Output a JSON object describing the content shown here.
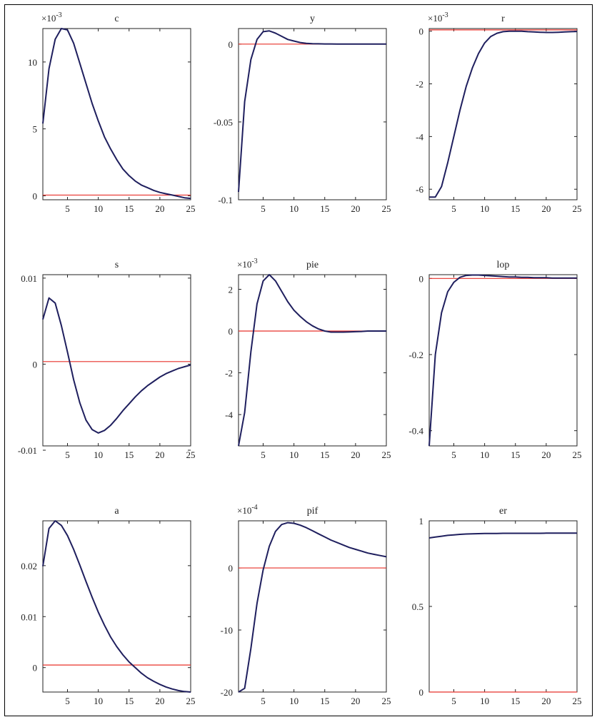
{
  "colors": {
    "response": "#1f1f5e",
    "zero": "#e8302a",
    "axis": "#222222"
  },
  "chart_data": [
    {
      "type": "line",
      "title": "c",
      "exponent": "-3",
      "x": [
        1,
        2,
        3,
        4,
        5,
        6,
        7,
        8,
        9,
        10,
        11,
        12,
        13,
        14,
        15,
        16,
        17,
        18,
        19,
        20,
        21,
        22,
        23,
        24,
        25
      ],
      "series": [
        {
          "values": [
            5.4,
            9.5,
            11.7,
            12.5,
            12.4,
            11.4,
            9.9,
            8.4,
            6.9,
            5.6,
            4.4,
            3.5,
            2.7,
            2.0,
            1.5,
            1.1,
            0.8,
            0.6,
            0.4,
            0.25,
            0.15,
            0.05,
            -0.05,
            -0.15,
            -0.2
          ]
        }
      ],
      "xlim": [
        1,
        25
      ],
      "ylim": [
        -0.3,
        12.5
      ],
      "xticks": [
        5,
        10,
        15,
        20,
        25
      ],
      "xtick_labels": [
        "5",
        "10",
        "15",
        "20",
        "25"
      ],
      "yticks": [
        0,
        5,
        10
      ],
      "ytick_labels": [
        "0",
        "5",
        "10"
      ],
      "zero_line": 0.05
    },
    {
      "type": "line",
      "title": "y",
      "exponent": "",
      "x": [
        1,
        2,
        3,
        4,
        5,
        6,
        7,
        8,
        9,
        10,
        11,
        12,
        13,
        14,
        15,
        16,
        17,
        18,
        19,
        20,
        21,
        22,
        23,
        24,
        25
      ],
      "series": [
        {
          "values": [
            -0.095,
            -0.037,
            -0.01,
            0.003,
            0.008,
            0.0085,
            0.007,
            0.005,
            0.003,
            0.002,
            0.001,
            0.0005,
            0.0003,
            0.0002,
            0.0001,
            0.0001,
            5e-05,
            3e-05,
            0.0,
            0.0,
            0.0,
            0.0,
            0.0,
            0.0,
            0.0
          ]
        }
      ],
      "xlim": [
        1,
        25
      ],
      "ylim": [
        -0.1,
        0.01
      ],
      "xticks": [
        5,
        10,
        15,
        20,
        25
      ],
      "xtick_labels": [
        "5",
        "10",
        "15",
        "20",
        "25"
      ],
      "yticks": [
        -0.1,
        -0.05,
        0
      ],
      "ytick_labels": [
        "-0.1",
        "-0.05",
        "0"
      ],
      "zero_line": 0
    },
    {
      "type": "line",
      "title": "r",
      "exponent": "-3",
      "x": [
        1,
        2,
        3,
        4,
        5,
        6,
        7,
        8,
        9,
        10,
        11,
        12,
        13,
        14,
        15,
        16,
        17,
        18,
        19,
        20,
        21,
        22,
        23,
        24,
        25
      ],
      "series": [
        {
          "values": [
            -6.3,
            -6.3,
            -5.9,
            -5.0,
            -4.0,
            -3.0,
            -2.1,
            -1.4,
            -0.85,
            -0.45,
            -0.2,
            -0.08,
            -0.02,
            0.0,
            0.0,
            0.0,
            -0.02,
            -0.03,
            -0.04,
            -0.05,
            -0.05,
            -0.04,
            -0.03,
            -0.02,
            -0.01
          ]
        }
      ],
      "xlim": [
        1,
        25
      ],
      "ylim": [
        -6.4,
        0.1
      ],
      "xticks": [
        5,
        10,
        15,
        20,
        25
      ],
      "xtick_labels": [
        "5",
        "10",
        "15",
        "20",
        "25"
      ],
      "yticks": [
        -6,
        -4,
        -2,
        0
      ],
      "ytick_labels": [
        "-6",
        "-4",
        "-2",
        "0"
      ],
      "zero_line": 0.05
    },
    {
      "type": "line",
      "title": "s",
      "exponent": "",
      "x": [
        1,
        2,
        3,
        4,
        5,
        6,
        7,
        8,
        9,
        10,
        11,
        12,
        13,
        14,
        15,
        16,
        17,
        18,
        19,
        20,
        21,
        22,
        23,
        24,
        25
      ],
      "series": [
        {
          "values": [
            0.0052,
            0.0077,
            0.0071,
            0.0045,
            0.0014,
            -0.0018,
            -0.0045,
            -0.0065,
            -0.0076,
            -0.008,
            -0.0077,
            -0.0071,
            -0.0063,
            -0.0054,
            -0.0046,
            -0.0038,
            -0.0031,
            -0.0025,
            -0.002,
            -0.0015,
            -0.0011,
            -0.0008,
            -0.0005,
            -0.0003,
            -0.0001
          ]
        }
      ],
      "xlim": [
        1,
        25
      ],
      "ylim": [
        -0.0095,
        0.0104
      ],
      "xticks": [
        5,
        10,
        15,
        20,
        25
      ],
      "xtick_labels": [
        "5",
        "10",
        "15",
        "20",
        "25"
      ],
      "yticks": [
        -0.01,
        0,
        0.01
      ],
      "ytick_labels": [
        "-0.01",
        "0",
        "0.01"
      ],
      "zero_line": 0.0003
    },
    {
      "type": "line",
      "title": "pie",
      "exponent": "-3",
      "x": [
        1,
        2,
        3,
        4,
        5,
        6,
        7,
        8,
        9,
        10,
        11,
        12,
        13,
        14,
        15,
        16,
        17,
        18,
        19,
        20,
        21,
        22,
        23,
        24,
        25
      ],
      "series": [
        {
          "values": [
            -5.5,
            -3.9,
            -1.0,
            1.3,
            2.4,
            2.7,
            2.4,
            1.9,
            1.4,
            1.0,
            0.7,
            0.45,
            0.25,
            0.1,
            0.0,
            -0.05,
            -0.05,
            -0.05,
            -0.04,
            -0.03,
            -0.02,
            0.0,
            0.0,
            0.0,
            0.0
          ]
        }
      ],
      "xlim": [
        1,
        25
      ],
      "ylim": [
        -5.5,
        2.7
      ],
      "xticks": [
        5,
        10,
        15,
        20,
        25
      ],
      "xtick_labels": [
        "5",
        "10",
        "15",
        "20",
        "25"
      ],
      "yticks": [
        -4,
        -2,
        0,
        2
      ],
      "ytick_labels": [
        "-4",
        "-2",
        "0",
        "2"
      ],
      "zero_line": 0
    },
    {
      "type": "line",
      "title": "lop",
      "exponent": "",
      "x": [
        1,
        2,
        3,
        4,
        5,
        6,
        7,
        8,
        9,
        10,
        11,
        12,
        13,
        14,
        15,
        16,
        17,
        18,
        19,
        20,
        21,
        22,
        23,
        24,
        25
      ],
      "series": [
        {
          "values": [
            -0.44,
            -0.2,
            -0.09,
            -0.035,
            -0.01,
            0.003,
            0.008,
            0.009,
            0.009,
            0.008,
            0.007,
            0.006,
            0.005,
            0.004,
            0.004,
            0.003,
            0.003,
            0.002,
            0.002,
            0.002,
            0.001,
            0.001,
            0.001,
            0.001,
            0.001
          ]
        }
      ],
      "xlim": [
        1,
        25
      ],
      "ylim": [
        -0.44,
        0.01
      ],
      "xticks": [
        5,
        10,
        15,
        20,
        25
      ],
      "xtick_labels": [
        "5",
        "10",
        "15",
        "20",
        "25"
      ],
      "yticks": [
        -0.4,
        -0.2,
        0
      ],
      "ytick_labels": [
        "-0.4",
        "-0.2",
        "0"
      ],
      "zero_line": 0
    },
    {
      "type": "line",
      "title": "a",
      "exponent": "",
      "x": [
        1,
        2,
        3,
        4,
        5,
        6,
        7,
        8,
        9,
        10,
        11,
        12,
        13,
        14,
        15,
        16,
        17,
        18,
        19,
        20,
        21,
        22,
        23,
        24,
        25
      ],
      "series": [
        {
          "values": [
            0.0199,
            0.0273,
            0.0288,
            0.0279,
            0.0259,
            0.0232,
            0.0201,
            0.0169,
            0.0138,
            0.0109,
            0.0083,
            0.006,
            0.0041,
            0.0025,
            0.0011,
            0.0,
            -0.0011,
            -0.002,
            -0.0027,
            -0.0033,
            -0.0038,
            -0.0042,
            -0.0045,
            -0.0047,
            -0.0048
          ]
        }
      ],
      "xlim": [
        1,
        25
      ],
      "ylim": [
        -0.0048,
        0.0288
      ],
      "xticks": [
        5,
        10,
        15,
        20,
        25
      ],
      "xtick_labels": [
        "5",
        "10",
        "15",
        "20",
        "25"
      ],
      "yticks": [
        0,
        0.01,
        0.02
      ],
      "ytick_labels": [
        "0",
        "0.01",
        "0.02"
      ],
      "zero_line": 0.0005
    },
    {
      "type": "line",
      "title": "pif",
      "exponent": "-4",
      "x": [
        1,
        2,
        3,
        4,
        5,
        6,
        7,
        8,
        9,
        10,
        11,
        12,
        13,
        14,
        15,
        16,
        17,
        18,
        19,
        20,
        21,
        22,
        23,
        24,
        25
      ],
      "series": [
        {
          "values": [
            -20,
            -19.4,
            -13,
            -5.7,
            -0.3,
            3.5,
            5.9,
            7.0,
            7.3,
            7.2,
            6.9,
            6.5,
            6.0,
            5.5,
            5.0,
            4.5,
            4.1,
            3.7,
            3.3,
            3.0,
            2.7,
            2.4,
            2.2,
            2.0,
            1.8
          ]
        }
      ],
      "xlim": [
        1,
        25
      ],
      "ylim": [
        -20,
        7.6
      ],
      "xticks": [
        5,
        10,
        15,
        20,
        25
      ],
      "xtick_labels": [
        "5",
        "10",
        "15",
        "20",
        "25"
      ],
      "yticks": [
        -20,
        -10,
        0
      ],
      "ytick_labels": [
        "-20",
        "-10",
        "0"
      ],
      "zero_line": 0
    },
    {
      "type": "line",
      "title": "er",
      "exponent": "",
      "x": [
        1,
        2,
        3,
        4,
        5,
        6,
        7,
        8,
        9,
        10,
        11,
        12,
        13,
        14,
        15,
        16,
        17,
        18,
        19,
        20,
        21,
        22,
        23,
        24,
        25
      ],
      "series": [
        {
          "values": [
            0.9,
            0.905,
            0.91,
            0.915,
            0.918,
            0.921,
            0.923,
            0.924,
            0.925,
            0.926,
            0.926,
            0.926,
            0.927,
            0.927,
            0.927,
            0.927,
            0.927,
            0.927,
            0.927,
            0.928,
            0.928,
            0.928,
            0.928,
            0.928,
            0.928
          ]
        }
      ],
      "xlim": [
        1,
        25
      ],
      "ylim": [
        0,
        1
      ],
      "xticks": [
        5,
        10,
        15,
        20,
        25
      ],
      "xtick_labels": [
        "5",
        "10",
        "15",
        "20",
        "25"
      ],
      "yticks": [
        0,
        0.5,
        1
      ],
      "ytick_labels": [
        "0",
        "0.5",
        "1"
      ],
      "zero_line": 0
    }
  ]
}
